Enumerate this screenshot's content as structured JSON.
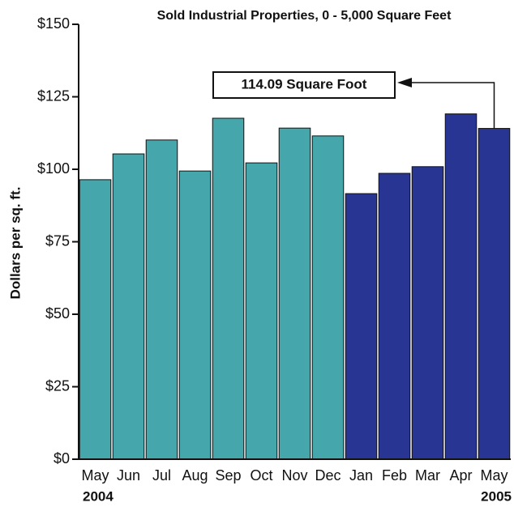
{
  "chart_data": {
    "type": "bar",
    "title": "Sold Industrial Properties, 0 - 5,000 Square Feet",
    "y_label": "Dollars per sq. ft.",
    "categories": [
      "May",
      "Jun",
      "Jul",
      "Aug",
      "Sep",
      "Oct",
      "Nov",
      "Dec",
      "Jan",
      "Feb",
      "Mar",
      "Apr",
      "May"
    ],
    "values": [
      96.4,
      105.3,
      110.1,
      99.4,
      117.6,
      102.2,
      114.2,
      111.5,
      91.6,
      98.6,
      100.9,
      119.1,
      114.09
    ],
    "colors": [
      "#45a7ab",
      "#45a7ab",
      "#45a7ab",
      "#45a7ab",
      "#45a7ab",
      "#45a7ab",
      "#45a7ab",
      "#45a7ab",
      "#283593",
      "#283593",
      "#283593",
      "#283593",
      "#283593"
    ],
    "year_labels": [
      "2004",
      "2005"
    ],
    "annotation": "114.09 Square Foot",
    "ylim": [
      0,
      150
    ],
    "yticks": [
      {
        "value": 0,
        "label": "$0"
      },
      {
        "value": 25,
        "label": "$25"
      },
      {
        "value": 50,
        "label": "$50"
      },
      {
        "value": 75,
        "label": "$75"
      },
      {
        "value": 100,
        "label": "$100"
      },
      {
        "value": 125,
        "label": "$125"
      },
      {
        "value": 150,
        "label": "$150"
      }
    ],
    "grid": false
  }
}
